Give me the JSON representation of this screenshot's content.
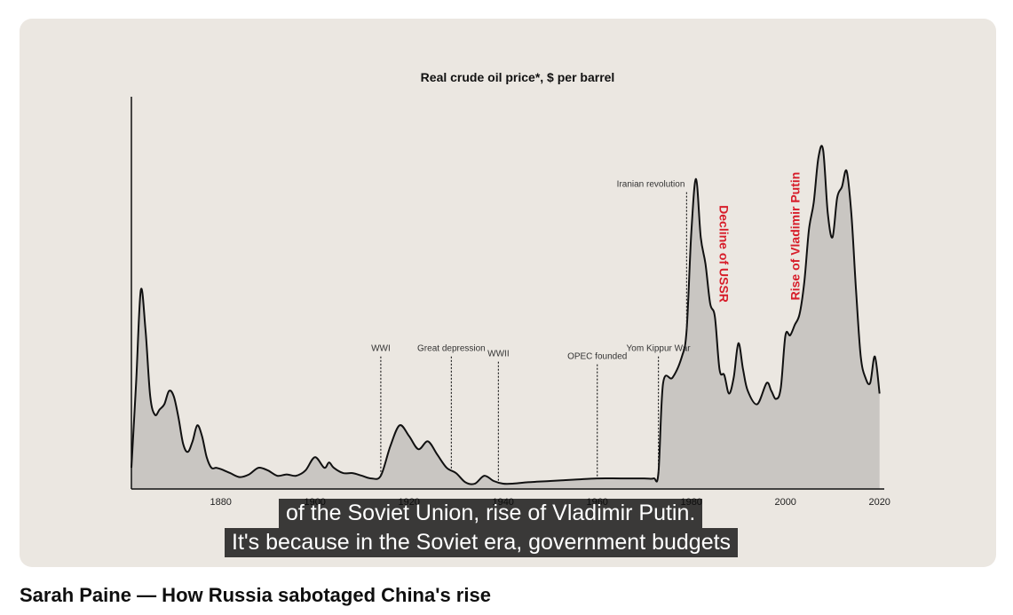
{
  "video": {
    "title": "Sarah Paine — How Russia sabotaged China's rise",
    "captions": [
      "of the Soviet Union, rise of Vladimir Putin.",
      "It's because in the Soviet era, government budgets"
    ]
  },
  "chart_data": {
    "type": "area",
    "title": "Real crude oil price*, $ per barrel",
    "xlabel": "",
    "ylabel": "",
    "xlim": [
      1861,
      2021
    ],
    "ylim": [
      0,
      140
    ],
    "x_ticks": [
      "1880",
      "1900",
      "1920",
      "1940",
      "1960",
      "1980",
      "2000",
      "2020"
    ],
    "grid": false,
    "fill_color": "#c9c6c2",
    "line_color": "#111111",
    "series": [
      {
        "x": [
          1861,
          1862,
          1863,
          1864,
          1865,
          1866,
          1867,
          1868,
          1869,
          1870,
          1871,
          1872,
          1873,
          1874,
          1875,
          1876,
          1877,
          1878,
          1879,
          1880,
          1882,
          1884,
          1886,
          1888,
          1890,
          1892,
          1894,
          1896,
          1898,
          1900,
          1902,
          1903,
          1904,
          1906,
          1908,
          1910,
          1912,
          1914,
          1916,
          1918,
          1920,
          1922,
          1924,
          1926,
          1928,
          1930,
          1932,
          1934,
          1936,
          1938,
          1940,
          1942,
          1945,
          1950,
          1955,
          1960,
          1965,
          1970,
          1972,
          1973,
          1974,
          1976,
          1978,
          1979,
          1980,
          1981,
          1982,
          1983,
          1984,
          1985,
          1986,
          1987,
          1988,
          1989,
          1990,
          1991,
          1992,
          1994,
          1996,
          1997,
          1998,
          1999,
          2000,
          2001,
          2002,
          2003,
          2004,
          2005,
          2006,
          2007,
          2008,
          2009,
          2010,
          2011,
          2012,
          2013,
          2014,
          2015,
          2016,
          2017,
          2018,
          2019,
          2020
        ],
        "y": [
          8,
          40,
          75,
          60,
          35,
          28,
          30,
          32,
          37,
          35,
          27,
          17,
          14,
          18,
          24,
          20,
          12,
          8,
          8,
          7.5,
          6,
          4.5,
          5.5,
          8,
          7,
          5,
          5.5,
          5,
          7,
          12,
          8,
          10,
          8,
          6,
          6,
          5,
          4,
          5,
          16,
          24,
          20,
          15,
          18,
          13,
          8,
          6,
          2.5,
          2,
          5,
          3,
          2,
          2,
          2.5,
          3,
          3.5,
          4,
          4,
          4,
          4,
          6,
          40,
          42,
          50,
          60,
          97,
          117,
          95,
          85,
          70,
          65,
          45,
          43,
          36,
          42,
          55,
          45,
          37,
          32,
          40,
          37,
          34,
          38,
          58,
          58,
          62,
          66,
          78,
          98,
          108,
          125,
          128,
          104,
          95,
          110,
          114,
          120,
          104,
          75,
          50,
          42,
          40,
          50,
          36
        ]
      }
    ],
    "annotations": [
      {
        "text": "WWI",
        "x": 1914,
        "y": 50
      },
      {
        "text": "Great depression",
        "x": 1929,
        "y": 50
      },
      {
        "text": "WWII",
        "x": 1939,
        "y": 48
      },
      {
        "text": "OPEC founded",
        "x": 1960,
        "y": 47
      },
      {
        "text": "Yom Kippur War",
        "x": 1973,
        "y": 50
      },
      {
        "text": "Iranian revolution",
        "x": 1979,
        "y": 112
      },
      {
        "text": "Decline of USSR",
        "x": 1986,
        "color": "#d71d2a"
      },
      {
        "text": "Rise of Vladimir Putin",
        "x": 2003,
        "color": "#d71d2a"
      }
    ]
  }
}
